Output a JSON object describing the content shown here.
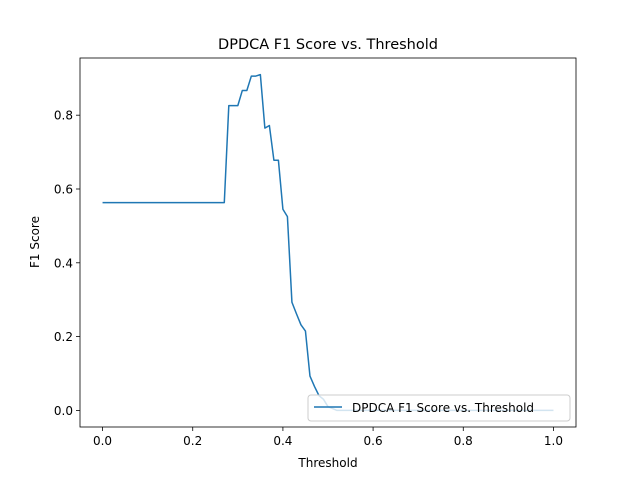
{
  "chart_data": {
    "type": "line",
    "title": "DPDCA F1 Score vs. Threshold",
    "xlabel": "Threshold",
    "ylabel": "F1 Score",
    "xlim": [
      -0.05,
      1.05
    ],
    "ylim": [
      -0.045,
      0.955
    ],
    "xticks": [
      0.0,
      0.2,
      0.4,
      0.6,
      0.8,
      1.0
    ],
    "xtick_labels": [
      "0.0",
      "0.2",
      "0.4",
      "0.6",
      "0.8",
      "1.0"
    ],
    "yticks": [
      0.0,
      0.2,
      0.4,
      0.6,
      0.8
    ],
    "ytick_labels": [
      "0.0",
      "0.2",
      "0.4",
      "0.6",
      "0.8"
    ],
    "grid": false,
    "legend_position": "lower-right",
    "color": "#1f77b4",
    "series": [
      {
        "name": "DPDCA F1 Score vs. Threshold",
        "x": [
          0.0,
          0.1,
          0.2,
          0.27,
          0.28,
          0.29,
          0.3,
          0.31,
          0.32,
          0.33,
          0.34,
          0.35,
          0.36,
          0.37,
          0.38,
          0.39,
          0.4,
          0.41,
          0.42,
          0.43,
          0.44,
          0.45,
          0.46,
          0.47,
          0.48,
          0.49,
          0.5,
          0.51,
          0.52,
          0.55,
          0.6,
          0.7,
          0.8,
          0.9,
          1.0
        ],
        "y": [
          0.563,
          0.563,
          0.563,
          0.563,
          0.826,
          0.826,
          0.826,
          0.867,
          0.867,
          0.906,
          0.906,
          0.91,
          0.765,
          0.772,
          0.678,
          0.678,
          0.545,
          0.525,
          0.293,
          0.262,
          0.232,
          0.215,
          0.093,
          0.065,
          0.04,
          0.03,
          0.01,
          0.005,
          0.0,
          0.0,
          0.0,
          0.0,
          0.0,
          0.0,
          0.0
        ]
      }
    ]
  }
}
